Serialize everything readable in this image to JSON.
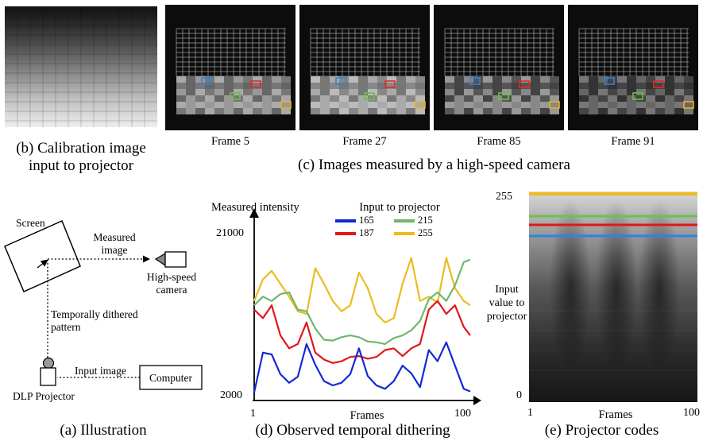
{
  "panel_b": {
    "caption_line1": "(b) Calibration image",
    "caption_line2": "input to projector"
  },
  "panel_c": {
    "caption": "(c) Images measured by a high-speed camera",
    "frames": [
      {
        "label": "Frame 5"
      },
      {
        "label": "Frame 27"
      },
      {
        "label": "Frame 85"
      },
      {
        "label": "Frame 91"
      }
    ],
    "roi_colors": {
      "blue": "#2a86e0",
      "red": "#e02a2a",
      "green": "#6cc23a",
      "yellow": "#e8b21e"
    }
  },
  "panel_a": {
    "caption": "(a) Illustration",
    "screen": "Screen",
    "measured_line1": "Measured",
    "measured_line2": "image",
    "camera_line1": "High-speed",
    "camera_line2": "camera",
    "pattern_line1": "Temporally dithered",
    "pattern_line2": "pattern",
    "input_image": "Input image",
    "computer": "Computer",
    "projector": "DLP Projector"
  },
  "panel_d": {
    "caption": "(d) Observed temporal dithering",
    "chart_data": {
      "type": "line",
      "ylabel": "Measured intensity",
      "xlabel": "Frames",
      "legend_title": "Input to projector",
      "legend_position": "top",
      "xlim": [
        1,
        100
      ],
      "ylim": [
        2000,
        21000
      ],
      "xticks": [
        "1",
        "100"
      ],
      "yticks": [
        "21000",
        "2000"
      ],
      "x": [
        1,
        5,
        9,
        13,
        17,
        21,
        25,
        29,
        33,
        37,
        41,
        45,
        49,
        53,
        57,
        61,
        65,
        69,
        73,
        77,
        81,
        85,
        89,
        93,
        97,
        100
      ],
      "series": [
        {
          "name": "165",
          "color": "#1428d6",
          "values": [
            2400,
            7000,
            6800,
            4500,
            3500,
            4200,
            8000,
            5600,
            3700,
            3200,
            3500,
            4500,
            7500,
            4300,
            3200,
            2800,
            3700,
            5500,
            4600,
            3000,
            7300,
            6000,
            8200,
            5500,
            2800,
            2500
          ]
        },
        {
          "name": "187",
          "color": "#e01818",
          "values": [
            12000,
            11000,
            12500,
            9000,
            7500,
            8000,
            10500,
            7000,
            6200,
            5800,
            6000,
            6500,
            6600,
            6300,
            6500,
            7300,
            7500,
            6600,
            7500,
            8000,
            12000,
            13000,
            11500,
            12500,
            10000,
            9000
          ]
        },
        {
          "name": "215",
          "color": "#6cb86c",
          "values": [
            12500,
            13500,
            13000,
            13800,
            14000,
            12000,
            11800,
            9800,
            8500,
            8400,
            8800,
            9000,
            8800,
            8300,
            8200,
            8000,
            8700,
            9000,
            9600,
            10700,
            13200,
            14000,
            13000,
            14800,
            17500,
            17800
          ]
        },
        {
          "name": "255",
          "color": "#ecbc1e",
          "values": [
            13000,
            15500,
            16500,
            15000,
            13500,
            11800,
            11500,
            16800,
            15000,
            13000,
            11800,
            12500,
            16300,
            14500,
            11500,
            10500,
            11000,
            15000,
            18000,
            13000,
            13500,
            12800,
            18000,
            14500,
            13000,
            12500
          ]
        }
      ]
    }
  },
  "panel_e": {
    "caption": "(e) Projector codes",
    "y_top": "255",
    "y_bottom": "0",
    "x_left": "1",
    "x_right": "100",
    "xlabel": "Frames",
    "ylabel_line1": "Input",
    "ylabel_line2": "value to",
    "ylabel_line3": "projector",
    "line_colors": {
      "yellow": "#ecbc1e",
      "green": "#6cc24a",
      "red": "#e01818",
      "blue": "#2a86e0"
    }
  }
}
